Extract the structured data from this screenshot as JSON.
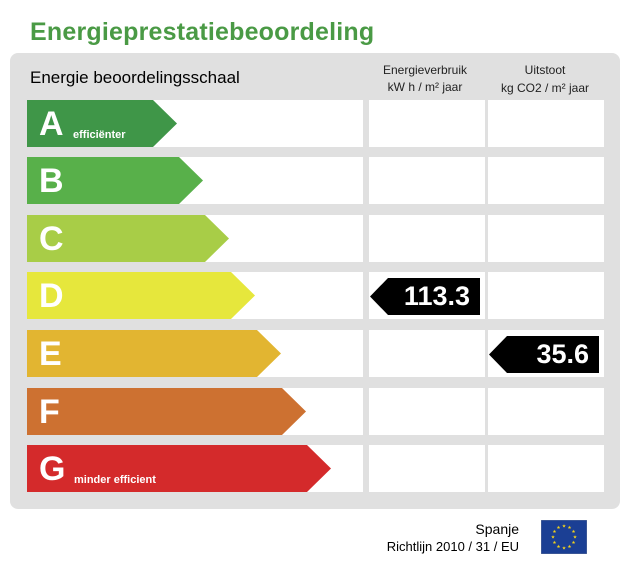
{
  "title": "Energieprestatiebeoordeling",
  "scale_label": "Energie beoordelingsschaal",
  "columns": {
    "energy": {
      "header": "Energieverbruik",
      "unit": "kW h / m² jaar"
    },
    "co2": {
      "header": "Uitstoot",
      "unit": "kg CO2 / m² jaar"
    }
  },
  "ratings": [
    {
      "letter": "A",
      "sub": "efficiënter",
      "color": "#3f9648"
    },
    {
      "letter": "B",
      "sub": "",
      "color": "#58b04a"
    },
    {
      "letter": "C",
      "sub": "",
      "color": "#a8cd47"
    },
    {
      "letter": "D",
      "sub": "",
      "color": "#e6e73c"
    },
    {
      "letter": "E",
      "sub": "",
      "color": "#e2b531"
    },
    {
      "letter": "F",
      "sub": "",
      "color": "#cd7131"
    },
    {
      "letter": "G",
      "sub": "minder efficient",
      "color": "#d42a2b"
    }
  ],
  "energy_value": {
    "rating": "D",
    "value": "113.3"
  },
  "co2_value": {
    "rating": "E",
    "value": "35.6"
  },
  "footer": {
    "country": "Spanje",
    "directive": "Richtlijn 2010 / 31 / EU"
  },
  "eu_flag": {
    "icon": "eu-flag-icon",
    "background": "#1b3f94",
    "stars": "#f3d21b"
  }
}
